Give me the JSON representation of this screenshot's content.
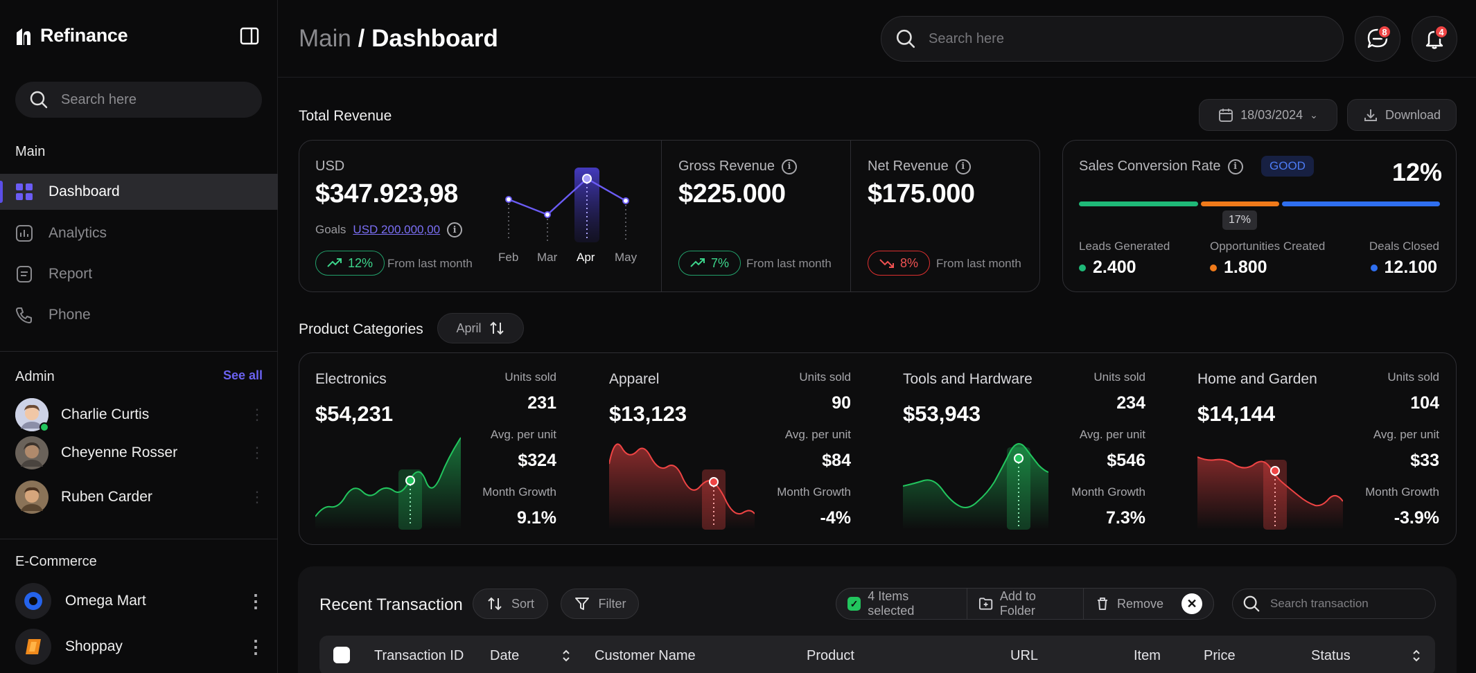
{
  "app": {
    "name": "Refinance"
  },
  "sidebar": {
    "search_placeholder": "Search here",
    "main_title": "Main",
    "nav": [
      {
        "label": "Dashboard",
        "icon": "grid-icon",
        "active": true
      },
      {
        "label": "Analytics",
        "icon": "bar-chart-icon"
      },
      {
        "label": "Report",
        "icon": "document-icon"
      },
      {
        "label": "Phone",
        "icon": "phone-icon"
      }
    ],
    "admin_title": "Admin",
    "see_all": "See all",
    "admins": [
      {
        "name": "Charlie Curtis",
        "online": true
      },
      {
        "name": "Cheyenne Rosser",
        "online": false
      },
      {
        "name": "Ruben Carder",
        "online": false
      }
    ],
    "ecommerce_title": "E-Commerce",
    "shops": [
      {
        "name": "Omega Mart"
      },
      {
        "name": "Shoppay"
      }
    ]
  },
  "header": {
    "crumb_parent": "Main",
    "crumb_sep": "/",
    "crumb_current": "Dashboard",
    "search_placeholder": "Search here",
    "messages_count": "8",
    "notifications_count": "4"
  },
  "revenue": {
    "title": "Total Revenue",
    "date": "18/03/2024",
    "download_label": "Download",
    "usd_label": "USD",
    "usd_value": "$347.923,98",
    "goals_label": "Goals",
    "goals_value": "USD 200.000,00",
    "usd_change": "12%",
    "from_last_month": "From last month",
    "months": [
      "Feb",
      "Mar",
      "Apr",
      "May"
    ],
    "highlight_month": "Apr",
    "gross_label": "Gross Revenue",
    "gross_value": "$225.000",
    "gross_change": "7%",
    "net_label": "Net Revenue",
    "net_value": "$175.000",
    "net_change": "8%"
  },
  "conversion": {
    "title": "Sales Conversion Rate",
    "status": "GOOD",
    "rate": "12%",
    "marker": "17%",
    "colors": {
      "leads": "#1fb978",
      "opportunities": "#f07a1a",
      "deals": "#2f6ff0"
    },
    "stats": [
      {
        "label": "Leads Generated",
        "value": "2.400"
      },
      {
        "label": "Opportunities Created",
        "value": "1.800"
      },
      {
        "label": "Deals Closed",
        "value": "12.100"
      }
    ]
  },
  "categories": {
    "title": "Product Categories",
    "filter": "April",
    "units_label": "Units sold",
    "avg_label": "Avg. per unit",
    "growth_label": "Month Growth",
    "items": [
      {
        "name": "Electronics",
        "value": "$54,231",
        "units": "231",
        "avg": "$324",
        "growth": "9.1%",
        "color": "#22c55e"
      },
      {
        "name": "Apparel",
        "value": "$13,123",
        "units": "90",
        "avg": "$84",
        "growth": "-4%",
        "color": "#ef4444"
      },
      {
        "name": "Tools and Hardware",
        "value": "$53,943",
        "units": "234",
        "avg": "$546",
        "growth": "7.3%",
        "color": "#22c55e"
      },
      {
        "name": "Home and Garden",
        "value": "$14,144",
        "units": "104",
        "avg": "$33",
        "growth": "-3.9%",
        "color": "#ef4444"
      }
    ]
  },
  "transactions": {
    "title": "Recent Transaction",
    "sort_label": "Sort",
    "filter_label": "Filter",
    "selected_label": "4 Items selected",
    "add_folder_label": "Add to Folder",
    "remove_label": "Remove",
    "search_placeholder": "Search transaction",
    "columns": [
      "Transaction ID",
      "Date",
      "Customer Name",
      "Product",
      "URL",
      "Item",
      "Price",
      "Status"
    ]
  }
}
